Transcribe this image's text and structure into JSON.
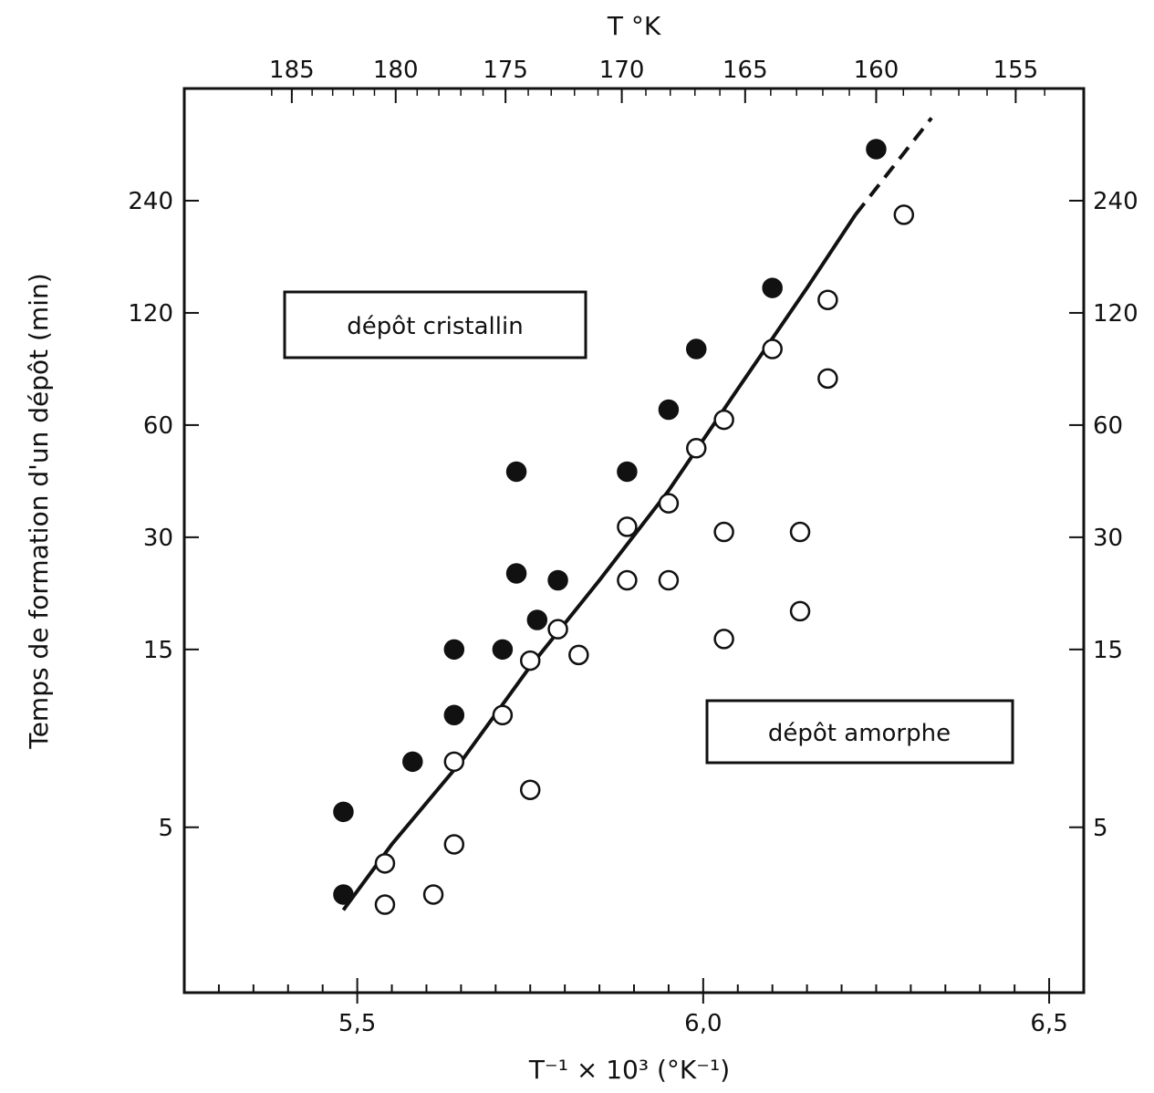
{
  "chart_data": {
    "type": "scatter",
    "title": "",
    "xlabel": "T⁻¹ × 10³ (°K⁻¹)",
    "ylabel": "Temps de formation d'un dépôt (min)",
    "top_xlabel": "T °K",
    "xlim": [
      5.25,
      6.55
    ],
    "ylim_log": [
      1.8,
      480
    ],
    "x_ticks": [
      {
        "value": 5.5,
        "label": "5,5"
      },
      {
        "value": 6.0,
        "label": "6,0"
      },
      {
        "value": 6.5,
        "label": "6,5"
      }
    ],
    "top_ticks": [
      185,
      180,
      175,
      170,
      165,
      160,
      155
    ],
    "y_ticks": [
      5,
      15,
      30,
      60,
      120,
      240
    ],
    "y_scale": "log",
    "grid": false,
    "regions": [
      {
        "label": "dépôt cristallin"
      },
      {
        "label": "dépôt amorphe"
      }
    ],
    "series": [
      {
        "marker": "filled-circle",
        "points": [
          [
            5.48,
            5.5
          ],
          [
            5.48,
            3.3
          ],
          [
            5.58,
            7.5
          ],
          [
            5.64,
            10
          ],
          [
            5.64,
            15
          ],
          [
            5.71,
            15
          ],
          [
            5.73,
            45
          ],
          [
            5.73,
            24
          ],
          [
            5.76,
            18
          ],
          [
            5.79,
            23
          ],
          [
            5.89,
            45
          ],
          [
            5.95,
            66
          ],
          [
            5.99,
            96
          ],
          [
            6.1,
            140
          ],
          [
            6.25,
            330
          ]
        ]
      },
      {
        "marker": "open-circle",
        "points": [
          [
            5.54,
            4.0
          ],
          [
            5.54,
            3.1
          ],
          [
            5.61,
            3.3
          ],
          [
            5.64,
            4.5
          ],
          [
            5.64,
            7.5
          ],
          [
            5.71,
            10
          ],
          [
            5.75,
            6.3
          ],
          [
            5.75,
            14
          ],
          [
            5.79,
            17
          ],
          [
            5.82,
            14.5
          ],
          [
            5.89,
            23
          ],
          [
            5.89,
            32
          ],
          [
            5.95,
            23
          ],
          [
            5.95,
            37
          ],
          [
            5.99,
            52
          ],
          [
            6.03,
            62
          ],
          [
            6.03,
            16
          ],
          [
            6.03,
            31
          ],
          [
            6.1,
            96
          ],
          [
            6.14,
            31
          ],
          [
            6.14,
            19
          ],
          [
            6.18,
            80
          ],
          [
            6.18,
            130
          ],
          [
            6.29,
            220
          ]
        ]
      }
    ],
    "fit_line": {
      "style": "solid",
      "points": [
        [
          5.48,
          3.0
        ],
        [
          5.55,
          4.5
        ],
        [
          5.65,
          7.5
        ],
        [
          5.75,
          13.5
        ],
        [
          5.85,
          23
        ],
        [
          5.95,
          40
        ],
        [
          6.05,
          75
        ],
        [
          6.15,
          140
        ],
        [
          6.22,
          220
        ]
      ]
    },
    "fit_extension": {
      "style": "dashed",
      "points": [
        [
          6.22,
          220
        ],
        [
          6.33,
          400
        ]
      ]
    }
  }
}
